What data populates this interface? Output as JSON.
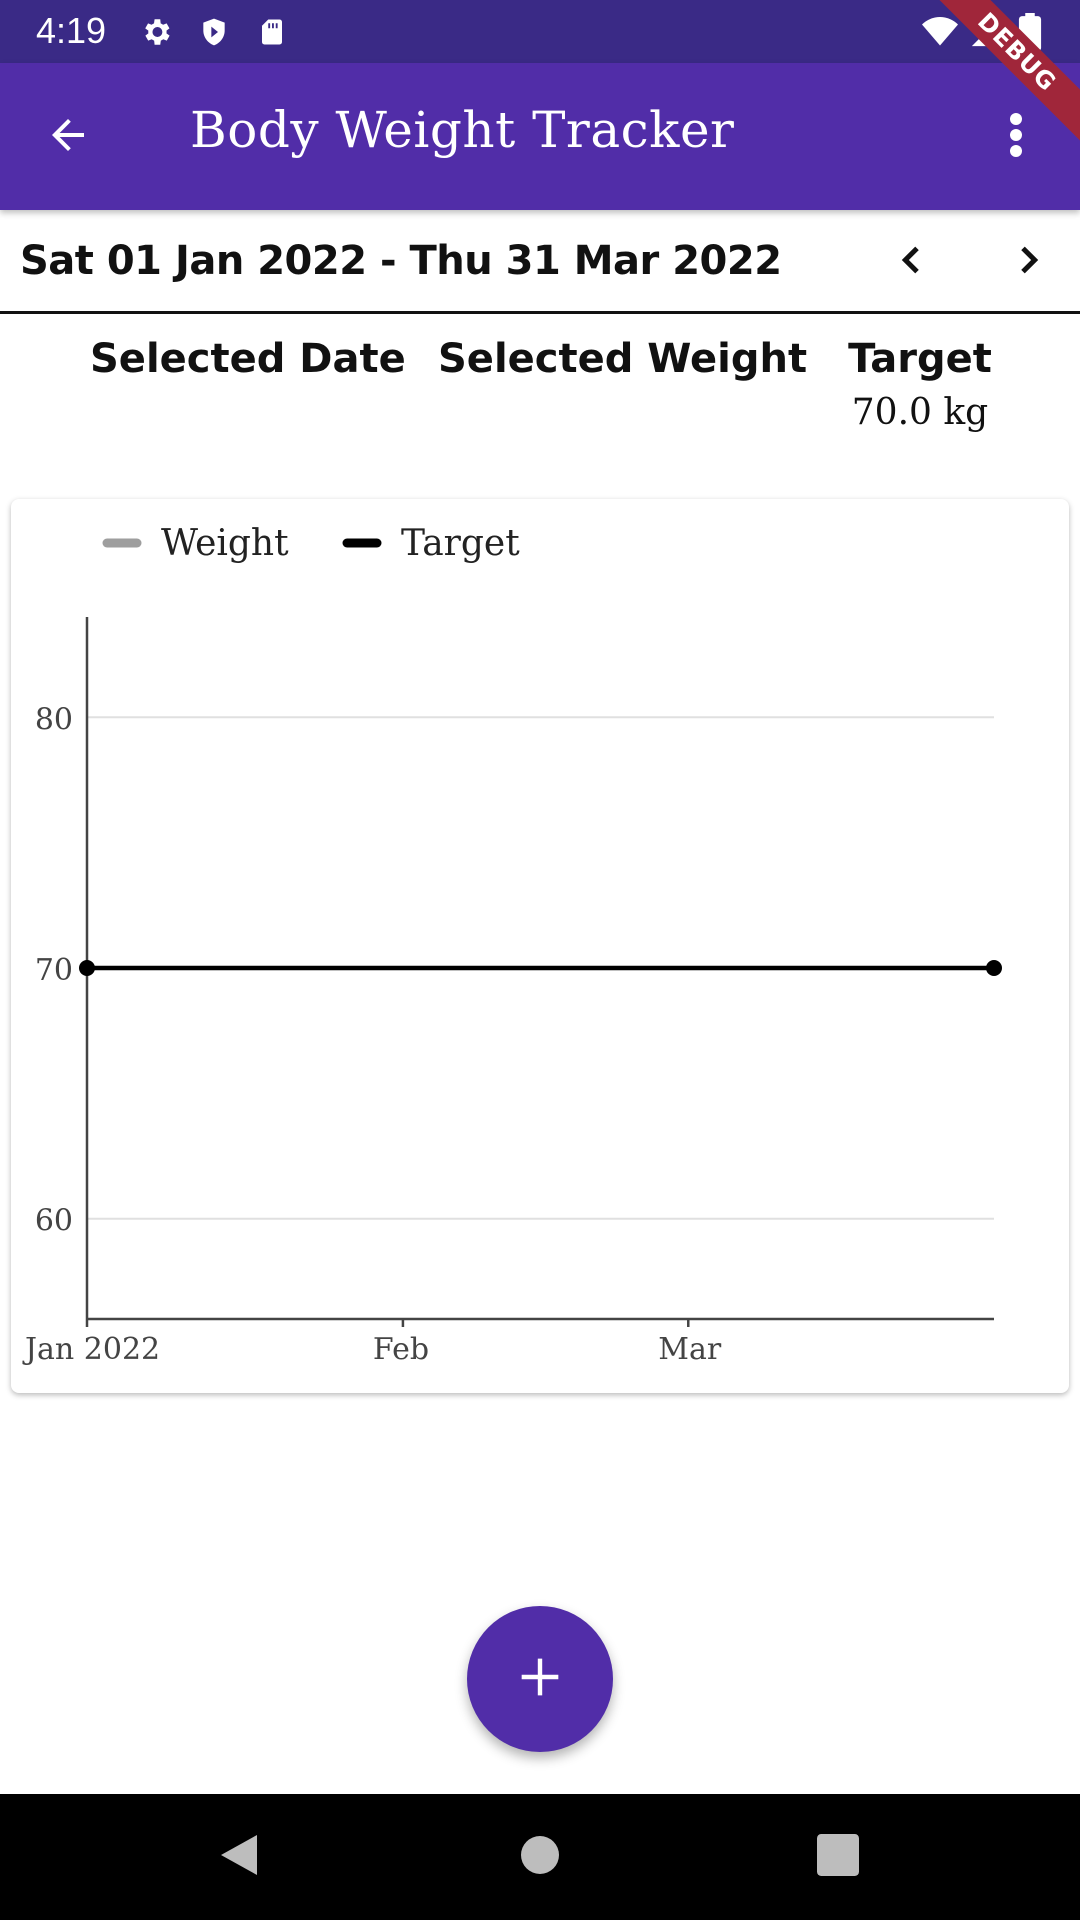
{
  "status_bar": {
    "time": "4:19",
    "icons": [
      "gear-icon",
      "shield-icon",
      "sd-card-icon",
      "wifi-icon",
      "signal-icon",
      "battery-icon"
    ]
  },
  "app_bar": {
    "title": "Body Weight Tracker",
    "back_icon": "arrow-back-icon",
    "menu_icon": "more-vert-icon",
    "debug_label": "DEBUG"
  },
  "range": {
    "label": "Sat 01 Jan 2022 - Thu 31 Mar 2022",
    "prev_icon": "chevron-left-icon",
    "next_icon": "chevron-right-icon"
  },
  "summary": {
    "selected_date_label": "Selected Date",
    "selected_date_value": "",
    "selected_weight_label": "Selected Weight",
    "selected_weight_value": "",
    "target_label": "Target",
    "target_value": "70.0 kg"
  },
  "chart_data": {
    "type": "line",
    "title": "",
    "xlabel": "",
    "ylabel": "",
    "x_ticks": [
      "Jan 2022",
      "Feb",
      "Mar"
    ],
    "y_ticks": [
      60,
      70,
      80
    ],
    "xlim": [
      "2022-01-01",
      "2022-03-31"
    ],
    "ylim": [
      56,
      84
    ],
    "grid": true,
    "legend": "top-left",
    "series": [
      {
        "name": "Weight",
        "color": "#9e9e9e",
        "points": []
      },
      {
        "name": "Target",
        "color": "#000000",
        "points": [
          {
            "x": "2022-01-01",
            "y": 70
          },
          {
            "x": "2022-03-31",
            "y": 70
          }
        ]
      }
    ]
  },
  "fab": {
    "icon": "plus-icon",
    "color": "#512da8"
  },
  "nav_bar": {
    "icons": [
      "back-triangle-icon",
      "home-circle-icon",
      "recents-square-icon"
    ]
  },
  "colors": {
    "primary": "#512da8",
    "status_bar": "#3a2a86",
    "debug": "#a0263a"
  }
}
